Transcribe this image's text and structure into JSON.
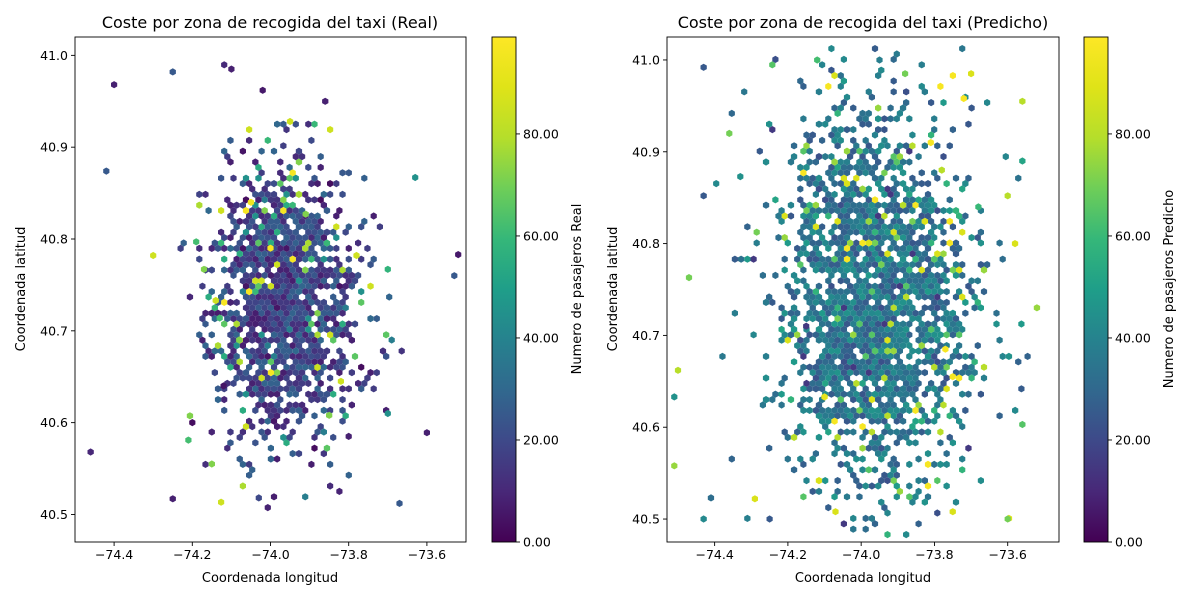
{
  "chart_data": [
    {
      "type": "heatmap",
      "title": "Coste por zona de recogida del taxi (Real)",
      "xlabel": "Coordenada longitud",
      "ylabel": "Coordenada latitud",
      "xlim": [
        -74.5,
        -73.5
      ],
      "ylim": [
        40.47,
        41.02
      ],
      "xticks": [
        -74.4,
        -74.2,
        -74.0,
        -73.8,
        -73.6
      ],
      "xtick_labels": [
        "−74.4",
        "−74.2",
        "−74.0",
        "−73.8",
        "−73.6"
      ],
      "yticks": [
        40.5,
        40.6,
        40.7,
        40.8,
        40.9,
        41.0
      ],
      "ytick_labels": [
        "40.5",
        "40.6",
        "40.7",
        "40.8",
        "40.9",
        "41.0"
      ],
      "colorbar": {
        "label": "Numero de pasajeros Real",
        "colormap": "viridis",
        "range": [
          0,
          99
        ],
        "ticks": [
          0,
          20,
          40,
          60,
          80
        ],
        "tick_labels": [
          "0.00",
          "20.00",
          "40.00",
          "60.00",
          "80.00"
        ]
      },
      "hexbin": {
        "center": [
          -73.97,
          40.73
        ],
        "spread": [
          0.09,
          0.07
        ],
        "dense_value": 18,
        "outlier_values": [
          97,
          85,
          78,
          72,
          66,
          60,
          55,
          45,
          38,
          30,
          22,
          12,
          8,
          5,
          3
        ]
      },
      "points": [
        [
          -74.4,
          40.968,
          8
        ],
        [
          -74.25,
          40.982,
          25
        ],
        [
          -74.1,
          40.985,
          8
        ],
        [
          -74.02,
          40.962,
          6
        ],
        [
          -73.95,
          40.928,
          85
        ],
        [
          -73.86,
          40.95,
          8
        ],
        [
          -74.46,
          40.568,
          10
        ],
        [
          -74.25,
          40.517,
          8
        ],
        [
          -74.21,
          40.581,
          62
        ],
        [
          -74.15,
          40.555,
          72
        ],
        [
          -74.03,
          40.518,
          20
        ],
        [
          -74.05,
          40.84,
          95
        ],
        [
          -74.0,
          40.79,
          97
        ],
        [
          -73.63,
          40.867,
          45
        ],
        [
          -73.78,
          40.782,
          85
        ],
        [
          -73.7,
          40.767,
          58
        ],
        [
          -73.69,
          40.69,
          38
        ],
        [
          -73.52,
          40.783,
          6
        ],
        [
          -73.53,
          40.76,
          25
        ],
        [
          -73.67,
          40.512,
          25
        ],
        [
          -73.6,
          40.589,
          8
        ],
        [
          -74.3,
          40.782,
          85
        ],
        [
          -74.42,
          40.874,
          25
        ],
        [
          -74.19,
          40.797,
          62
        ],
        [
          -74.17,
          40.767,
          72
        ],
        [
          -74.14,
          40.733,
          85
        ],
        [
          -74.13,
          40.714,
          62
        ],
        [
          -74.08,
          40.69,
          72
        ],
        [
          -73.88,
          40.66,
          85
        ],
        [
          -73.85,
          40.608,
          72
        ],
        [
          -73.82,
          40.645,
          85
        ],
        [
          -73.91,
          40.827,
          72
        ],
        [
          -74.12,
          40.64,
          5
        ],
        [
          -74.2,
          40.6,
          3
        ],
        [
          -73.8,
          40.585,
          8
        ],
        [
          -73.7,
          40.61,
          45
        ]
      ]
    },
    {
      "type": "heatmap",
      "title": "Coste por zona de recogida del taxi (Predicho)",
      "xlabel": "Coordenada longitud",
      "ylabel": "Coordenada latitud",
      "xlim": [
        -74.53,
        -73.46
      ],
      "ylim": [
        40.475,
        41.025
      ],
      "xticks": [
        -74.4,
        -74.2,
        -74.0,
        -73.8,
        -73.6
      ],
      "xtick_labels": [
        "−74.4",
        "−74.2",
        "−74.0",
        "−73.8",
        "−73.6"
      ],
      "yticks": [
        40.5,
        40.6,
        40.7,
        40.8,
        40.9,
        41.0
      ],
      "ytick_labels": [
        "40.5",
        "40.6",
        "40.7",
        "40.8",
        "40.9",
        "41.0"
      ],
      "colorbar": {
        "label": "Numero de pasajeros Predicho",
        "colormap": "viridis",
        "range": [
          0,
          99
        ],
        "ticks": [
          0,
          20,
          40,
          60,
          80
        ],
        "tick_labels": [
          "0.00",
          "20.00",
          "40.00",
          "60.00",
          "80.00"
        ]
      },
      "hexbin": {
        "center": [
          -73.97,
          40.74
        ],
        "spread": [
          0.13,
          0.1
        ],
        "dense_value": 35,
        "outlier_values": [
          97,
          88,
          80,
          75,
          70,
          65,
          58,
          52,
          48,
          42,
          38,
          32,
          28,
          22,
          15
        ]
      },
      "points": [
        [
          -74.43,
          40.992,
          25
        ],
        [
          -74.12,
          41.0,
          62
        ],
        [
          -73.95,
          41.0,
          38
        ],
        [
          -73.88,
          40.985,
          70
        ],
        [
          -73.7,
          40.985,
          88
        ],
        [
          -73.72,
          40.958,
          97
        ],
        [
          -73.56,
          40.955,
          80
        ],
        [
          -73.81,
          40.91,
          97
        ],
        [
          -73.78,
          40.88,
          80
        ],
        [
          -74.36,
          40.92,
          70
        ],
        [
          -74.33,
          40.873,
          45
        ],
        [
          -74.43,
          40.852,
          25
        ],
        [
          -74.47,
          40.763,
          70
        ],
        [
          -74.5,
          40.662,
          80
        ],
        [
          -74.51,
          40.633,
          45
        ],
        [
          -74.51,
          40.558,
          75
        ],
        [
          -74.29,
          40.522,
          88
        ],
        [
          -74.25,
          40.5,
          25
        ],
        [
          -74.43,
          40.5,
          42
        ],
        [
          -74.41,
          40.523,
          32
        ],
        [
          -74.07,
          40.508,
          88
        ],
        [
          -73.75,
          40.508,
          88
        ],
        [
          -73.6,
          40.5,
          70
        ],
        [
          -73.56,
          40.603,
          65
        ],
        [
          -73.58,
          40.8,
          88
        ],
        [
          -73.56,
          40.89,
          52
        ],
        [
          -73.6,
          40.852,
          80
        ],
        [
          -73.77,
          40.685,
          97
        ],
        [
          -73.75,
          40.655,
          97
        ],
        [
          -74.1,
          40.633,
          92
        ],
        [
          -73.68,
          40.84,
          60
        ],
        [
          -74.15,
          40.71,
          15
        ]
      ]
    }
  ]
}
